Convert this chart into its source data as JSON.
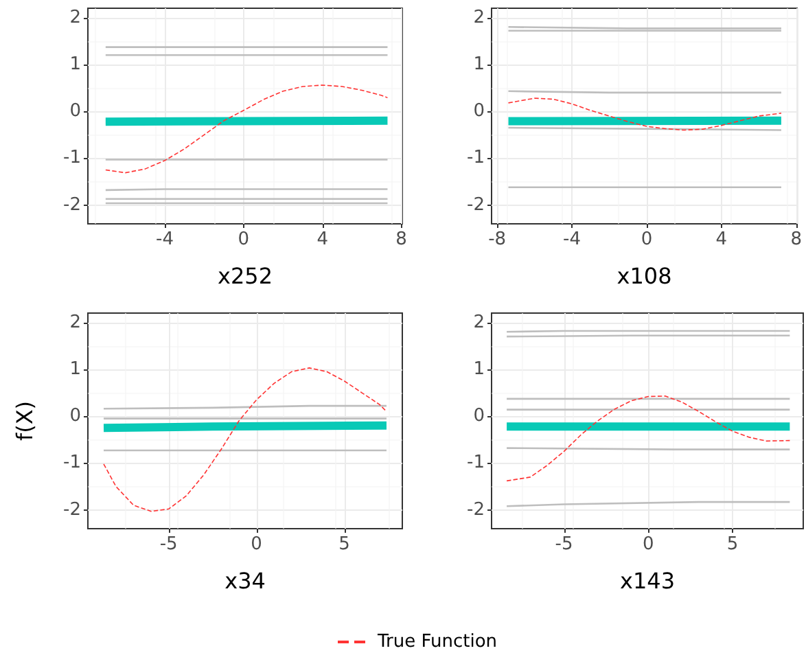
{
  "chart_data": [
    {
      "type": "line",
      "xlabel": "x252",
      "xlim": [
        -7.9,
        8.05
      ],
      "xticks": [
        -4,
        0,
        4,
        8
      ],
      "ylim": [
        -2.4,
        2.2
      ],
      "yticks": [
        -2,
        -1,
        0,
        1,
        2
      ],
      "grid": true,
      "marker": "none",
      "series": [
        {
          "color": "#bebebe",
          "x": [
            -7,
            7.3
          ],
          "values": [
            1.37,
            1.37
          ]
        },
        {
          "color": "#bebebe",
          "x": [
            -7,
            7.3
          ],
          "values": [
            1.2,
            1.2
          ]
        },
        {
          "color": "#bebebe",
          "x": [
            -7,
            7.3
          ],
          "values": [
            -1.03,
            -1.03
          ]
        },
        {
          "color": "#bebebe",
          "x": [
            -7,
            -4,
            7.3
          ],
          "values": [
            -1.68,
            -1.66,
            -1.66
          ]
        },
        {
          "color": "#bebebe",
          "x": [
            -7,
            7.3
          ],
          "values": [
            -1.87,
            -1.87
          ]
        },
        {
          "color": "#bebebe",
          "x": [
            -7,
            7.3
          ],
          "values": [
            -1.96,
            -1.96
          ]
        },
        {
          "color": "#08c9b6",
          "x": [
            -7,
            7.3
          ],
          "values": [
            -0.22,
            -0.2
          ]
        },
        {
          "color": "#ff3333",
          "line_style": "dashed",
          "x": [
            -7,
            -6,
            -5,
            -4,
            -3,
            -2,
            -1,
            0,
            1,
            2,
            3,
            4,
            5,
            6,
            7,
            7.3
          ],
          "values": [
            -1.25,
            -1.31,
            -1.23,
            -1.05,
            -0.8,
            -0.5,
            -0.2,
            0.02,
            0.25,
            0.43,
            0.53,
            0.56,
            0.53,
            0.45,
            0.34,
            0.29
          ]
        }
      ]
    },
    {
      "type": "line",
      "xlabel": "x108",
      "xlim": [
        -8.3,
        8.05
      ],
      "xticks": [
        -8,
        -4,
        0,
        4,
        8
      ],
      "ylim": [
        -2.4,
        2.2
      ],
      "yticks": [
        -2,
        -1,
        0,
        1,
        2
      ],
      "grid": true,
      "marker": "none",
      "series": [
        {
          "color": "#bebebe",
          "x": [
            -7.4,
            -1,
            7.2
          ],
          "values": [
            1.8,
            1.77,
            1.77
          ]
        },
        {
          "color": "#bebebe",
          "x": [
            -7.4,
            7.2
          ],
          "values": [
            1.72,
            1.72
          ]
        },
        {
          "color": "#bebebe",
          "x": [
            -7.4,
            -2,
            7.2
          ],
          "values": [
            0.43,
            0.4,
            0.4
          ]
        },
        {
          "color": "#bebebe",
          "x": [
            -7.4,
            2,
            7.2
          ],
          "values": [
            -0.35,
            -0.38,
            -0.4
          ]
        },
        {
          "color": "#bebebe",
          "x": [
            -7.4,
            7.2
          ],
          "values": [
            -1.62,
            -1.62
          ]
        },
        {
          "color": "#08c9b6",
          "x": [
            -7.4,
            7.2
          ],
          "values": [
            -0.21,
            -0.2
          ]
        },
        {
          "color": "#ff3333",
          "line_style": "dashed",
          "x": [
            -7.4,
            -6,
            -5,
            -4,
            -3,
            -2,
            -1,
            0,
            1,
            2,
            3,
            4,
            5,
            6,
            7.2
          ],
          "values": [
            0.18,
            0.28,
            0.26,
            0.16,
            0.02,
            -0.1,
            -0.22,
            -0.32,
            -0.37,
            -0.4,
            -0.38,
            -0.3,
            -0.2,
            -0.1,
            -0.04
          ]
        }
      ]
    },
    {
      "type": "line",
      "xlabel": "x34",
      "ylabel": "f(X)",
      "xlim": [
        -9.6,
        8.3
      ],
      "xticks": [
        -5,
        0,
        5
      ],
      "ylim": [
        -2.4,
        2.2
      ],
      "yticks": [
        -2,
        -1,
        0,
        1,
        2
      ],
      "grid": true,
      "marker": "none",
      "series": [
        {
          "color": "#bebebe",
          "x": [
            -8.7,
            -2.5,
            3,
            7.4
          ],
          "values": [
            0.16,
            0.18,
            0.22,
            0.22
          ]
        },
        {
          "color": "#bebebe",
          "x": [
            -8.7,
            7.4
          ],
          "values": [
            -0.05,
            -0.05
          ]
        },
        {
          "color": "#bebebe",
          "x": [
            -8.7,
            7.4
          ],
          "values": [
            -0.73,
            -0.73
          ]
        },
        {
          "color": "#08c9b6",
          "x": [
            -8.7,
            -2.5,
            7.4
          ],
          "values": [
            -0.25,
            -0.22,
            -0.2
          ]
        },
        {
          "color": "#ff3333",
          "line_style": "dashed",
          "x": [
            -8.7,
            -8,
            -7,
            -6,
            -5,
            -4,
            -3,
            -2,
            -1,
            0,
            1,
            2,
            3,
            4,
            5,
            6,
            7,
            7.4
          ],
          "values": [
            -1.02,
            -1.5,
            -1.9,
            -2.03,
            -1.98,
            -1.7,
            -1.25,
            -0.7,
            -0.1,
            0.35,
            0.7,
            0.95,
            1.03,
            0.95,
            0.75,
            0.5,
            0.25,
            0.1
          ]
        }
      ]
    },
    {
      "type": "line",
      "xlabel": "x143",
      "xlim": [
        -9.3,
        9.2
      ],
      "xticks": [
        -5,
        0,
        5
      ],
      "ylim": [
        -2.4,
        2.2
      ],
      "yticks": [
        -2,
        -1,
        0,
        1,
        2
      ],
      "grid": true,
      "marker": "none",
      "legend": "bottom",
      "series": [
        {
          "color": "#bebebe",
          "x": [
            -8.4,
            -5,
            8.4
          ],
          "values": [
            1.8,
            1.82,
            1.82
          ]
        },
        {
          "color": "#bebebe",
          "x": [
            -8.4,
            -1,
            8.4
          ],
          "values": [
            1.7,
            1.72,
            1.72
          ]
        },
        {
          "color": "#bebebe",
          "x": [
            -8.4,
            8.4
          ],
          "values": [
            0.37,
            0.37
          ]
        },
        {
          "color": "#bebebe",
          "x": [
            -8.4,
            8.4
          ],
          "values": [
            0.14,
            0.14
          ]
        },
        {
          "color": "#bebebe",
          "x": [
            -8.4,
            1.5,
            8.4
          ],
          "values": [
            -0.68,
            -0.71,
            -0.71
          ]
        },
        {
          "color": "#bebebe",
          "x": [
            -8.4,
            -5,
            3,
            8.4
          ],
          "values": [
            -1.92,
            -1.88,
            -1.83,
            -1.83
          ]
        },
        {
          "color": "#08c9b6",
          "x": [
            -8.4,
            8.4
          ],
          "values": [
            -0.22,
            -0.22
          ]
        },
        {
          "name": "True Function",
          "color": "#ff3333",
          "line_style": "dashed",
          "x": [
            -8.4,
            -7,
            -6,
            -5,
            -4,
            -3,
            -2,
            -1,
            0,
            1,
            2,
            3,
            4,
            5,
            6,
            7,
            8.4
          ],
          "values": [
            -1.38,
            -1.3,
            -1.05,
            -0.75,
            -0.4,
            -0.1,
            0.15,
            0.33,
            0.42,
            0.43,
            0.3,
            0.1,
            -0.12,
            -0.32,
            -0.45,
            -0.53,
            -0.52
          ]
        }
      ]
    }
  ]
}
